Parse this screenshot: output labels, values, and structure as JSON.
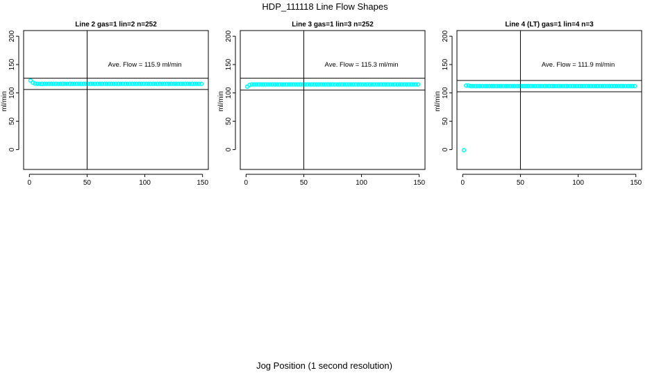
{
  "title": "HDP_111118  Line Flow Shapes",
  "xlabel": "Jog Position (1 second resolution)",
  "chart_data": [
    {
      "type": "scatter",
      "title": "Line 2 gas=1 lin=2 n=252",
      "ylabel": "ml/min",
      "annotation": "Ave. Flow =  115.9  ml/min",
      "xlim": [
        -5,
        155
      ],
      "ylim": [
        -35,
        210
      ],
      "xticks": [
        0,
        50,
        100,
        150
      ],
      "yticks": [
        0,
        50,
        100,
        150,
        200
      ],
      "vline": 50,
      "hlines": [
        106,
        126
      ],
      "color": "#00ffff",
      "x": [
        1,
        3,
        5,
        7,
        9,
        11,
        13,
        15,
        17,
        19,
        21,
        23,
        25,
        27,
        29,
        31,
        33,
        35,
        37,
        39,
        41,
        43,
        45,
        47,
        49,
        51,
        53,
        55,
        57,
        59,
        61,
        63,
        65,
        67,
        69,
        71,
        73,
        75,
        77,
        79,
        81,
        83,
        85,
        87,
        89,
        91,
        93,
        95,
        97,
        99,
        101,
        103,
        105,
        107,
        109,
        111,
        113,
        115,
        117,
        119,
        121,
        123,
        125,
        127,
        129,
        131,
        133,
        135,
        137,
        139,
        141,
        143,
        145,
        147,
        149
      ],
      "y": [
        122,
        118,
        116.5,
        116,
        116,
        116,
        116,
        116,
        116,
        116,
        116,
        116,
        116,
        116,
        116,
        116,
        116,
        116,
        116,
        116,
        116,
        116,
        116,
        116,
        116,
        116,
        116,
        116,
        116,
        116,
        116,
        116,
        116,
        116,
        116,
        116,
        116,
        116,
        116,
        116,
        116,
        116,
        116,
        116,
        116,
        116,
        116,
        116,
        116,
        116,
        116,
        116,
        116,
        116,
        116,
        116,
        116,
        116,
        116,
        116,
        116,
        116,
        116,
        116,
        116,
        116,
        116,
        116,
        116,
        116,
        116,
        116,
        116,
        116,
        116
      ]
    },
    {
      "type": "scatter",
      "title": "Line 3 gas=1 lin=3 n=252",
      "ylabel": "ml/min",
      "annotation": "Ave. Flow =  115.3  ml/min",
      "xlim": [
        -5,
        155
      ],
      "ylim": [
        -35,
        210
      ],
      "xticks": [
        0,
        50,
        100,
        150
      ],
      "yticks": [
        0,
        50,
        100,
        150,
        200
      ],
      "vline": 50,
      "hlines": [
        105,
        126
      ],
      "color": "#00ffff",
      "x": [
        1,
        3,
        5,
        7,
        9,
        11,
        13,
        15,
        17,
        19,
        21,
        23,
        25,
        27,
        29,
        31,
        33,
        35,
        37,
        39,
        41,
        43,
        45,
        47,
        49,
        51,
        53,
        55,
        57,
        59,
        61,
        63,
        65,
        67,
        69,
        71,
        73,
        75,
        77,
        79,
        81,
        83,
        85,
        87,
        89,
        91,
        93,
        95,
        97,
        99,
        101,
        103,
        105,
        107,
        109,
        111,
        113,
        115,
        117,
        119,
        121,
        123,
        125,
        127,
        129,
        131,
        133,
        135,
        137,
        139,
        141,
        143,
        145,
        147,
        149
      ],
      "y": [
        111,
        114,
        115,
        115,
        115,
        115,
        115,
        115,
        115,
        115,
        115,
        115,
        115,
        115,
        115,
        115,
        115,
        115,
        115,
        115,
        115,
        115,
        115,
        115,
        115,
        115,
        115,
        115,
        115,
        115,
        115,
        115,
        115,
        115,
        115,
        115,
        115,
        115,
        115,
        115,
        115,
        115,
        115,
        115,
        115,
        115,
        115,
        115,
        115,
        115,
        115,
        115,
        115,
        115,
        115,
        115,
        115,
        115,
        115,
        115,
        115,
        115,
        115,
        115,
        115,
        115,
        115,
        115,
        115,
        115,
        115,
        115,
        115,
        115,
        115
      ]
    },
    {
      "type": "scatter",
      "title": "Line 4 (LT) gas=1 lin=4 n=3",
      "ylabel": "ml/min",
      "annotation": "Ave. Flow =  111.9  ml/min",
      "xlim": [
        -5,
        155
      ],
      "ylim": [
        -35,
        210
      ],
      "xticks": [
        0,
        50,
        100,
        150
      ],
      "yticks": [
        0,
        50,
        100,
        150,
        200
      ],
      "vline": 50,
      "hlines": [
        102,
        122
      ],
      "color": "#00ffff",
      "x": [
        1,
        3,
        5,
        7,
        9,
        11,
        13,
        15,
        17,
        19,
        21,
        23,
        25,
        27,
        29,
        31,
        33,
        35,
        37,
        39,
        41,
        43,
        45,
        47,
        49,
        51,
        53,
        55,
        57,
        59,
        61,
        63,
        65,
        67,
        69,
        71,
        73,
        75,
        77,
        79,
        81,
        83,
        85,
        87,
        89,
        91,
        93,
        95,
        97,
        99,
        101,
        103,
        105,
        107,
        109,
        111,
        113,
        115,
        117,
        119,
        121,
        123,
        125,
        127,
        129,
        131,
        133,
        135,
        137,
        139,
        141,
        143,
        145,
        147,
        149
      ],
      "y": [
        -1,
        113,
        113,
        112,
        112,
        112,
        112,
        112,
        112,
        112,
        112,
        112,
        112,
        112,
        112,
        112,
        112,
        112,
        112,
        112,
        112,
        112,
        112,
        112,
        112,
        112,
        112,
        112,
        112,
        112,
        112,
        112,
        112,
        112,
        112,
        112,
        112,
        112,
        112,
        112,
        112,
        112,
        112,
        112,
        112,
        112,
        112,
        112,
        112,
        112,
        112,
        112,
        112,
        112,
        112,
        112,
        112,
        112,
        112,
        112,
        112,
        112,
        112,
        112,
        112,
        112,
        112,
        112,
        112,
        112,
        112,
        112,
        112,
        112,
        112
      ]
    }
  ]
}
